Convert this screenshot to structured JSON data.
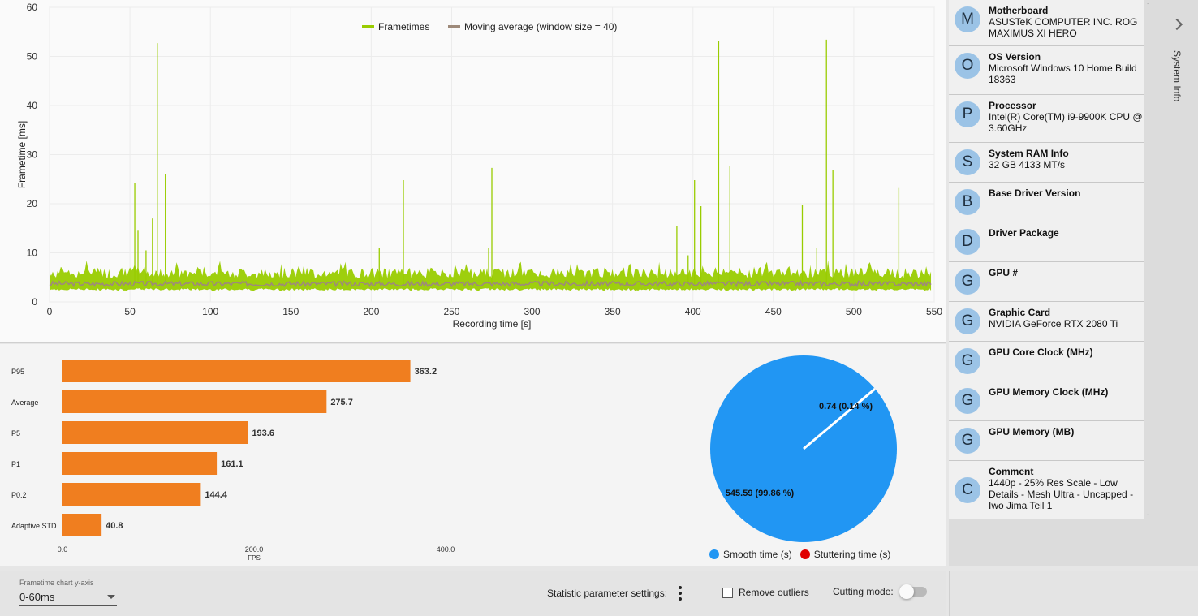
{
  "frametime_chart": {
    "legend": {
      "frametimes": "Frametimes",
      "moving_average": "Moving average (window size = 40)"
    },
    "xlabel": "Recording time [s]",
    "ylabel": "Frametime [ms]",
    "x_ticks": [
      "0",
      "50",
      "100",
      "150",
      "200",
      "250",
      "300",
      "350",
      "400",
      "450",
      "500",
      "550"
    ],
    "y_ticks": [
      "0",
      "10",
      "20",
      "30",
      "40",
      "50",
      "60"
    ],
    "colors": {
      "frametimes": "#99cc00",
      "moving_average": "#9e8a7a"
    }
  },
  "stats": {
    "axis_labels": [
      "0.0",
      "200.0",
      "400.0"
    ],
    "axis_title": "FPS",
    "bar_color": "#f07e1f"
  },
  "pie": {
    "slices": [
      {
        "label": "545.59 (99.86 %)",
        "value": 545.59,
        "color": "#2196f3"
      },
      {
        "label": "0.74 (0.14 %)",
        "value": 0.74,
        "color": "#e00000"
      }
    ],
    "legend": [
      "Smooth time (s)",
      "Stuttering time (s)"
    ]
  },
  "chart_data": [
    {
      "type": "line",
      "xlabel": "Recording time [s]",
      "ylabel": "Frametime [ms]",
      "xlim": [
        0,
        550
      ],
      "ylim": [
        0,
        60
      ],
      "legend_position": "top-center",
      "grid": true,
      "series": [
        {
          "name": "Frametimes",
          "baseline_ms": 3.6,
          "spikes": [
            [
              53,
              24.3
            ],
            [
              55,
              14.5
            ],
            [
              60,
              10.5
            ],
            [
              64,
              17
            ],
            [
              67,
              52.7
            ],
            [
              72,
              26
            ],
            [
              205,
              11
            ],
            [
              220,
              24.8
            ],
            [
              275,
              27.3
            ],
            [
              273,
              11
            ],
            [
              390,
              15.5
            ],
            [
              397,
              9.5
            ],
            [
              401,
              24.8
            ],
            [
              405,
              19.5
            ],
            [
              416,
              53.2
            ],
            [
              423,
              27.6
            ],
            [
              468,
              19.8
            ],
            [
              477,
              11
            ],
            [
              483,
              53.4
            ],
            [
              487,
              26.9
            ],
            [
              528,
              23.2
            ]
          ]
        },
        {
          "name": "Moving average (window size = 40)",
          "value_ms": 3.7
        }
      ]
    },
    {
      "type": "bar",
      "categories": [
        "P95",
        "Average",
        "P5",
        "P1",
        "P0.2",
        "Adaptive STD"
      ],
      "values": [
        363.2,
        275.7,
        193.6,
        161.1,
        144.4,
        40.8
      ],
      "xlabel": "FPS",
      "xlim": [
        0,
        400
      ]
    },
    {
      "type": "pie",
      "categories": [
        "Smooth time (s)",
        "Stuttering time (s)"
      ],
      "values": [
        545.59,
        0.74
      ],
      "labels": [
        "545.59 (99.86 %)",
        "0.74 (0.14 %)"
      ]
    }
  ],
  "system_info": {
    "panel_label": "System Info",
    "items": [
      {
        "avatar": "M",
        "title": "Motherboard",
        "value": "ASUSTeK COMPUTER INC. ROG MAXIMUS XI HERO"
      },
      {
        "avatar": "O",
        "title": "OS Version",
        "value": "Microsoft Windows 10 Home Build 18363"
      },
      {
        "avatar": "P",
        "title": "Processor",
        "value": "Intel(R) Core(TM) i9-9900K CPU @ 3.60GHz"
      },
      {
        "avatar": "S",
        "title": "System RAM Info",
        "value": "32 GB 4133 MT/s"
      },
      {
        "avatar": "B",
        "title": "Base Driver Version",
        "value": ""
      },
      {
        "avatar": "D",
        "title": "Driver Package",
        "value": ""
      },
      {
        "avatar": "G",
        "title": "GPU #",
        "value": ""
      },
      {
        "avatar": "G",
        "title": "Graphic Card",
        "value": "NVIDIA GeForce RTX 2080 Ti"
      },
      {
        "avatar": "G",
        "title": "GPU Core Clock (MHz)",
        "value": ""
      },
      {
        "avatar": "G",
        "title": "GPU Memory Clock (MHz)",
        "value": ""
      },
      {
        "avatar": "G",
        "title": "GPU Memory (MB)",
        "value": ""
      },
      {
        "avatar": "C",
        "title": "Comment",
        "value": "1440p - 25% Res Scale - Low Details - Mesh Ultra - Uncapped - Iwo Jima Teil 1"
      }
    ]
  },
  "bottom_bar": {
    "y_axis_caption": "Frametime chart y-axis",
    "y_axis_value": "0-60ms",
    "stat_settings_label": "Statistic parameter settings:",
    "remove_outliers_label": "Remove outliers",
    "remove_outliers_checked": false,
    "cutting_mode_label": "Cutting mode:",
    "cutting_mode_on": false
  }
}
